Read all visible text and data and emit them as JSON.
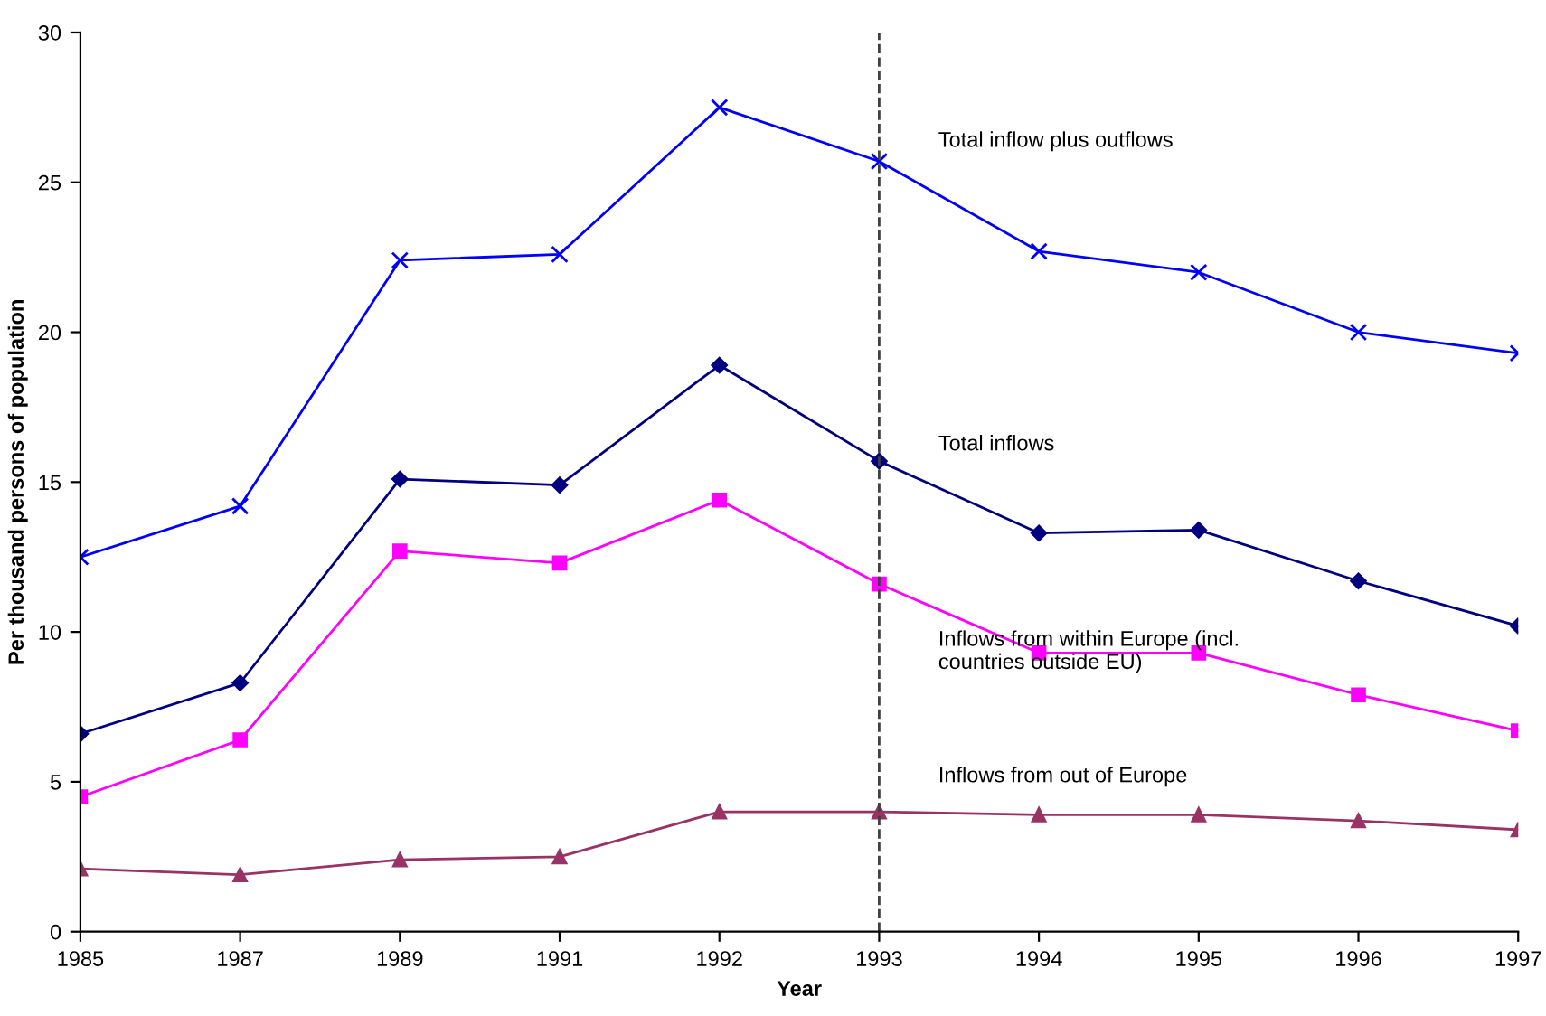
{
  "chart_data": {
    "type": "line",
    "xlabel": "Year",
    "ylabel": "Per thousand persons of population",
    "categories": [
      "1985",
      "1987",
      "1989",
      "1991",
      "1992",
      "1993",
      "1994",
      "1995",
      "1996",
      "1997"
    ],
    "ylim": [
      0,
      30
    ],
    "yticks": [
      0,
      5,
      10,
      15,
      20,
      25,
      30
    ],
    "grid": false,
    "legend": false,
    "ref_lines": [
      {
        "axis": "x",
        "value": "1993",
        "color": "#404040",
        "line_style": "dashed"
      }
    ],
    "series": [
      {
        "name": "Total inflow plus outflows",
        "color": "#0000ff",
        "marker": "cross",
        "values": [
          12.5,
          14.2,
          22.4,
          22.6,
          27.5,
          25.7,
          22.7,
          22.0,
          20.0,
          19.3
        ]
      },
      {
        "name": "Total inflows",
        "color": "#000080",
        "marker": "diamond",
        "values": [
          6.6,
          8.3,
          15.1,
          14.9,
          18.9,
          15.7,
          13.3,
          13.4,
          11.7,
          10.2
        ]
      },
      {
        "name": "Inflows from within Europe (incl.\ncountries outside EU)",
        "color": "#ff00ff",
        "marker": "square",
        "values": [
          4.5,
          6.4,
          12.7,
          12.3,
          14.4,
          11.6,
          9.3,
          9.3,
          7.9,
          6.7
        ]
      },
      {
        "name": "Inflows from out of Europe",
        "color": "#993366",
        "marker": "triangle",
        "values": [
          2.1,
          1.9,
          2.4,
          2.5,
          4.0,
          4.0,
          3.9,
          3.9,
          3.7,
          3.4
        ]
      }
    ]
  }
}
